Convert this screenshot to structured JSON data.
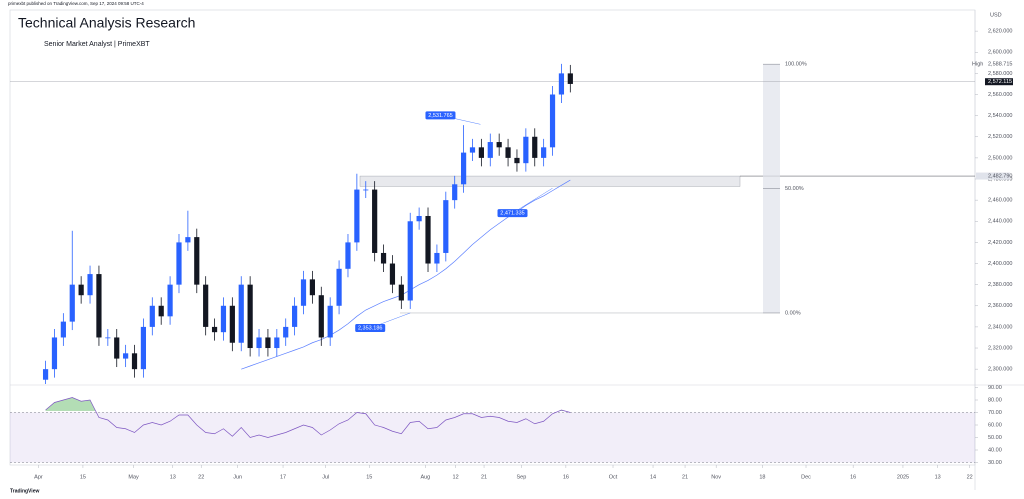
{
  "header": {
    "published": "primexbt published on TradingView.com, Sep 17, 2024 09:58 UTC-4",
    "title": "Technical Analysis Research",
    "subtitle": "Senior Market Analyst | PrimeXBT",
    "currency": "USD",
    "footer": "TradingView"
  },
  "chart_data": [
    {
      "type": "candlestick",
      "up_color": "#2962ff",
      "down_color": "#131722",
      "open": [
        2290,
        2300,
        2330,
        2345,
        2380,
        2370,
        2390,
        2330,
        2330,
        2310,
        2315,
        2300,
        2340,
        2360,
        2350,
        2380,
        2420,
        2425,
        2380,
        2340,
        2335,
        2360,
        2325,
        2380,
        2320,
        2330,
        2320,
        2330,
        2340,
        2360,
        2385,
        2370,
        2330,
        2360,
        2395,
        2420,
        2470,
        2470,
        2410,
        2400,
        2380,
        2365,
        2440,
        2445,
        2400,
        2410,
        2460,
        2475,
        2505,
        2510,
        2500,
        2515,
        2510,
        2500,
        2495,
        2520,
        2500,
        2510,
        2560,
        2580
      ],
      "high": [
        2308,
        2338,
        2353,
        2431,
        2388,
        2398,
        2398,
        2338,
        2338,
        2323,
        2323,
        2348,
        2368,
        2368,
        2388,
        2428,
        2450,
        2433,
        2388,
        2348,
        2368,
        2368,
        2388,
        2388,
        2338,
        2338,
        2338,
        2348,
        2368,
        2393,
        2393,
        2378,
        2368,
        2403,
        2428,
        2485,
        2478,
        2478,
        2418,
        2408,
        2388,
        2448,
        2453,
        2453,
        2418,
        2468,
        2483,
        2531,
        2518,
        2518,
        2523,
        2523,
        2518,
        2508,
        2528,
        2528,
        2518,
        2568,
        2589,
        2588
      ],
      "low": [
        2286,
        2292,
        2322,
        2337,
        2362,
        2362,
        2322,
        2322,
        2302,
        2302,
        2292,
        2292,
        2332,
        2342,
        2342,
        2372,
        2412,
        2372,
        2332,
        2327,
        2327,
        2317,
        2317,
        2312,
        2312,
        2312,
        2312,
        2322,
        2332,
        2352,
        2362,
        2322,
        2322,
        2352,
        2387,
        2412,
        2462,
        2402,
        2392,
        2372,
        2357,
        2357,
        2432,
        2392,
        2392,
        2402,
        2452,
        2467,
        2497,
        2492,
        2492,
        2502,
        2492,
        2487,
        2487,
        2492,
        2492,
        2502,
        2552,
        2562
      ],
      "close": [
        2300,
        2330,
        2345,
        2380,
        2370,
        2390,
        2330,
        2330,
        2310,
        2315,
        2300,
        2340,
        2360,
        2350,
        2380,
        2420,
        2425,
        2380,
        2340,
        2335,
        2360,
        2325,
        2380,
        2320,
        2330,
        2320,
        2330,
        2340,
        2360,
        2385,
        2370,
        2330,
        2360,
        2395,
        2420,
        2470,
        2470,
        2410,
        2400,
        2380,
        2365,
        2440,
        2445,
        2400,
        2410,
        2460,
        2475,
        2505,
        2510,
        2500,
        2515,
        2510,
        2500,
        2495,
        2520,
        2500,
        2510,
        2560,
        2580,
        2570
      ],
      "series": [
        {
          "color": "#5b7fff",
          "values": [
            null,
            null,
            null,
            null,
            null,
            null,
            null,
            null,
            null,
            null,
            null,
            null,
            null,
            null,
            null,
            null,
            null,
            null,
            null,
            null,
            null,
            null,
            2300,
            2303,
            2306,
            2309,
            2312,
            2315,
            2318,
            2321,
            2325,
            2328,
            2332,
            2337,
            2343,
            2350,
            2356,
            2360,
            2364,
            2367,
            2370,
            2375,
            2380,
            2384,
            2389,
            2395,
            2402,
            2410,
            2418,
            2425,
            2432,
            2438,
            2444,
            2449,
            2455,
            2460,
            2464,
            2469,
            2474,
            2479
          ]
        }
      ],
      "xlim": [
        -4,
        104.5
      ],
      "xticks": [
        {
          "value": -0.8,
          "label": "Apr"
        },
        {
          "value": 4.2,
          "label": "15"
        },
        {
          "value": 9.9,
          "label": "May"
        },
        {
          "value": 14.3,
          "label": "13"
        },
        {
          "value": 17.5,
          "label": "22"
        },
        {
          "value": 21.6,
          "label": "Jun"
        },
        {
          "value": 26.7,
          "label": "17"
        },
        {
          "value": 31.5,
          "label": "Jul"
        },
        {
          "value": 36.4,
          "label": "15"
        },
        {
          "value": 42.7,
          "label": "Aug"
        },
        {
          "value": 46.1,
          "label": "12"
        },
        {
          "value": 49.3,
          "label": "21"
        },
        {
          "value": 53.5,
          "label": "Sep"
        },
        {
          "value": 58.5,
          "label": "16"
        },
        {
          "value": 63.8,
          "label": "Oct"
        },
        {
          "value": 68.3,
          "label": "14"
        },
        {
          "value": 71.9,
          "label": "21"
        },
        {
          "value": 75.4,
          "label": "Nov"
        },
        {
          "value": 80.6,
          "label": "18"
        },
        {
          "value": 85.5,
          "label": "Dec"
        },
        {
          "value": 90.8,
          "label": "16"
        },
        {
          "value": 96.4,
          "label": "2025"
        },
        {
          "value": 100.3,
          "label": "13"
        },
        {
          "value": 103.9,
          "label": "22"
        }
      ],
      "ylim": [
        2285,
        2640
      ],
      "yticks": [
        {
          "value": 2300,
          "label": "2,300.000"
        },
        {
          "value": 2320,
          "label": "2,320.000"
        },
        {
          "value": 2340,
          "label": "2,340.000"
        },
        {
          "value": 2360,
          "label": "2,360.000"
        },
        {
          "value": 2380,
          "label": "2,380.000"
        },
        {
          "value": 2400,
          "label": "2,400.000"
        },
        {
          "value": 2420,
          "label": "2,420.000"
        },
        {
          "value": 2440,
          "label": "2,440.000"
        },
        {
          "value": 2460,
          "label": "2,460.000"
        },
        {
          "value": 2480,
          "label": "2,480.000"
        },
        {
          "value": 2500,
          "label": "2,500.000"
        },
        {
          "value": 2520,
          "label": "2,520.000"
        },
        {
          "value": 2540,
          "label": "2,540.000"
        },
        {
          "value": 2560,
          "label": "2,560.000"
        },
        {
          "value": 2580,
          "label": "2,580.000"
        },
        {
          "value": 2600,
          "label": "2,600.000"
        },
        {
          "value": 2620,
          "label": "2,620.000"
        }
      ],
      "high_marker": {
        "name": "High",
        "value": 2588.715,
        "label": "2,588.715"
      },
      "last_price": {
        "value": 2572.115,
        "label": "2,572.115"
      },
      "zone": {
        "value": 2482.79,
        "label": "2,482.790",
        "low": 2473
      },
      "annotations": [
        {
          "value": 2531.765,
          "label": "2,531.765"
        },
        {
          "value": 2471.335,
          "label": "2,471.335"
        },
        {
          "value": 2353.186,
          "label": "2,353.186"
        }
      ],
      "fib": {
        "high": 2588.715,
        "low": 2353.186,
        "levels": [
          {
            "value": 100,
            "label": "100.00%"
          },
          {
            "value": 50,
            "label": "50.00%"
          },
          {
            "value": 0,
            "label": "0.00%"
          }
        ]
      }
    },
    {
      "type": "line",
      "color": "#7e57c2",
      "overbought_color": "#81c784",
      "band": [
        30,
        70
      ],
      "values": [
        72,
        78,
        80,
        82,
        79,
        80,
        66,
        64,
        58,
        57,
        54,
        60,
        62,
        60,
        63,
        68,
        68,
        60,
        54,
        53,
        57,
        51,
        58,
        50,
        52,
        50,
        52,
        54,
        57,
        60,
        58,
        52,
        56,
        61,
        64,
        70,
        69,
        60,
        58,
        55,
        53,
        62,
        63,
        57,
        58,
        64,
        66,
        69,
        69,
        66,
        67,
        66,
        63,
        62,
        65,
        61,
        63,
        69,
        72,
        70
      ],
      "ylim": [
        28,
        92
      ],
      "yticks": [
        {
          "value": 30,
          "label": "30.00"
        },
        {
          "value": 40,
          "label": "40.00"
        },
        {
          "value": 50,
          "label": "50.00"
        },
        {
          "value": 60,
          "label": "60.00"
        },
        {
          "value": 70,
          "label": "70.00"
        },
        {
          "value": 80,
          "label": "80.00"
        },
        {
          "value": 90,
          "label": "90.00"
        }
      ]
    }
  ]
}
